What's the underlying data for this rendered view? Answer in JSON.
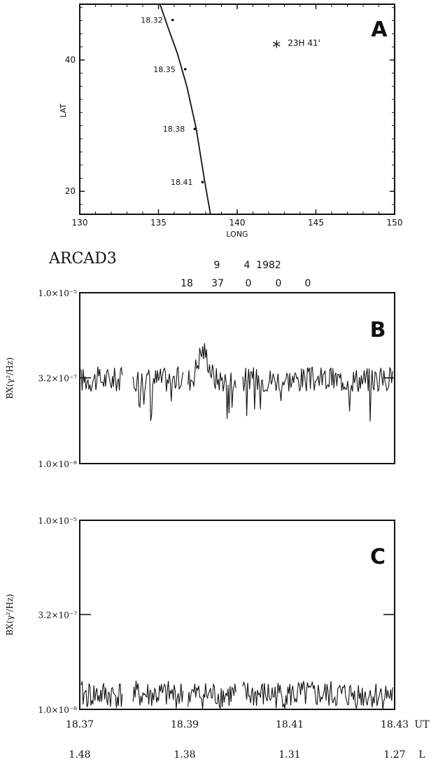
{
  "header": {
    "satellite": "ARCAD3",
    "date_row": [
      "9",
      "4",
      "1982"
    ],
    "time_row": [
      "18",
      "37",
      "0",
      "0",
      "0"
    ]
  },
  "chart_data": [
    {
      "id": "A",
      "type": "line",
      "panel_label": "A",
      "xlabel": "LONG",
      "ylabel": "LAT",
      "xlim": [
        130,
        150
      ],
      "ylim": [
        16.5,
        48.5
      ],
      "x_ticks": [
        130,
        135,
        140,
        145,
        150
      ],
      "y_ticks": [
        20,
        40
      ],
      "x_tick_labels": [
        "130",
        "135",
        "140",
        "145",
        "150"
      ],
      "y_tick_labels": [
        "20",
        "40"
      ],
      "track": {
        "x": [
          135.1,
          135.6,
          136.2,
          136.8,
          137.4,
          137.9,
          138.3
        ],
        "y": [
          48.5,
          45.0,
          41.0,
          36.0,
          29.5,
          22.0,
          16.5
        ]
      },
      "markers": [
        {
          "label": "18.32",
          "x": 135.9,
          "y": 46.1
        },
        {
          "label": "18.35",
          "x": 136.7,
          "y": 38.6
        },
        {
          "label": "18.38",
          "x": 137.3,
          "y": 29.5
        },
        {
          "label": "18.41",
          "x": 137.8,
          "y": 21.4
        }
      ],
      "star": {
        "x": 142.5,
        "y": 42.6,
        "label": "23H 41'"
      }
    },
    {
      "id": "B",
      "type": "line",
      "panel_label": "B",
      "ylabel": "BX(γ²/Hz)",
      "ylog": true,
      "ylim": [
        1e-08,
        1e-05
      ],
      "y_tick_values": [
        1e-05,
        3.2e-07,
        1e-08
      ],
      "y_tick_labels": [
        "1.0×10⁻⁵",
        "3.2×10⁻⁷",
        "1.0×10⁻⁸"
      ],
      "xlim": [
        18.37,
        18.43
      ],
      "baseline": 3e-07,
      "bump": {
        "center": 18.3935,
        "peak": 9.5e-07
      }
    },
    {
      "id": "C",
      "type": "line",
      "panel_label": "C",
      "ylabel": "BX(γ²/Hz)",
      "ylog": true,
      "ylim": [
        1e-08,
        1e-05
      ],
      "y_tick_values": [
        1e-05,
        3.2e-07,
        1e-08
      ],
      "y_tick_labels": [
        "1.0×10⁻⁵",
        "3.2×10⁻⁷",
        "1.0×10⁻⁸"
      ],
      "xlim": [
        18.37,
        18.43
      ],
      "baseline": 1.7e-08,
      "x_tick_values": [
        18.37,
        18.39,
        18.41,
        18.43
      ],
      "x_tick_labels": [
        "18.37",
        "18.39",
        "18.41",
        "18.43"
      ],
      "x_unit": "UT",
      "l_values": [
        "1.48",
        "1.38",
        "1.31",
        "1.27"
      ],
      "l_unit": "L"
    }
  ]
}
